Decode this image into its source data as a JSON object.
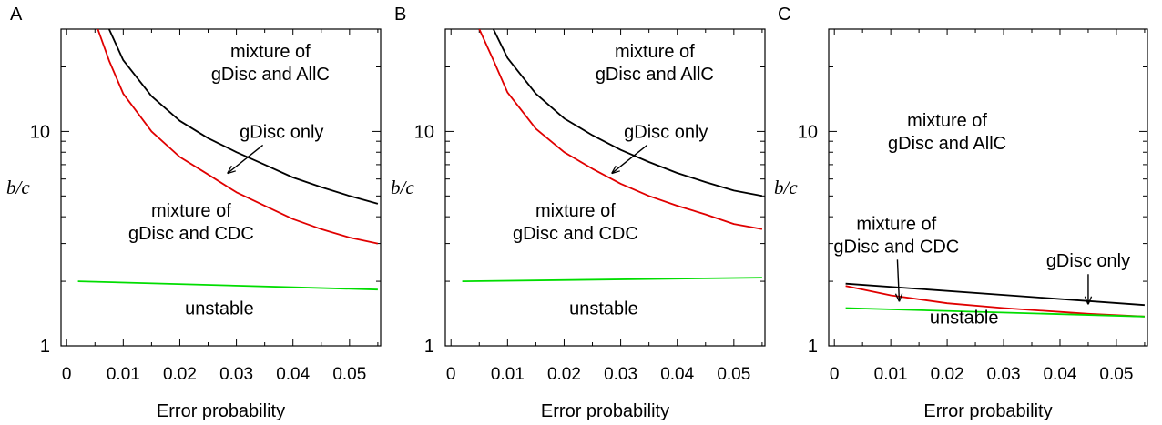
{
  "chart_data": [
    {
      "type": "line",
      "panel_label": "A",
      "xlabel": "Error probability",
      "ylabel": "b/c",
      "yscale": "log",
      "xlim": [
        -0.001,
        0.0555
      ],
      "ylim": [
        1,
        30
      ],
      "x_ticks": [
        0,
        0.01,
        0.02,
        0.03,
        0.04,
        0.05
      ],
      "x_tick_labels": [
        "0",
        "0.01",
        "0.02",
        "0.03",
        "0.04",
        "0.05"
      ],
      "y_ticks": [
        1,
        10
      ],
      "y_tick_labels": [
        "1",
        "10"
      ],
      "series": [
        {
          "color": "#000000",
          "x": [
            0.0075,
            0.01,
            0.015,
            0.02,
            0.025,
            0.03,
            0.035,
            0.04,
            0.045,
            0.05,
            0.055
          ],
          "y": [
            30,
            21.5,
            14.6,
            11.2,
            9.3,
            8.0,
            7.0,
            6.1,
            5.5,
            5.0,
            4.6
          ]
        },
        {
          "color": "#e00000",
          "x": [
            0.0055,
            0.0075,
            0.01,
            0.015,
            0.02,
            0.025,
            0.03,
            0.035,
            0.04,
            0.045,
            0.05,
            0.055
          ],
          "y": [
            30,
            21.4,
            15.0,
            10.0,
            7.6,
            6.3,
            5.2,
            4.5,
            3.9,
            3.5,
            3.2,
            3.0
          ]
        },
        {
          "color": "#00dd00",
          "x": [
            0.002,
            0.055
          ],
          "y": [
            2.0,
            1.83
          ]
        }
      ],
      "annotations": [
        {
          "lines": [
            "mixture of",
            "gDisc and AllC"
          ],
          "x": 0.036,
          "y": 21
        },
        {
          "lines": [
            "gDisc only"
          ],
          "x": 0.038,
          "y": 10,
          "arrow": true,
          "arrow_to": [
            0.0285,
            6.4
          ]
        },
        {
          "lines": [
            "mixture of",
            "gDisc and CDC"
          ],
          "x": 0.022,
          "y": 3.8
        },
        {
          "lines": [
            "unstable"
          ],
          "x": 0.027,
          "y": 1.5
        }
      ]
    },
    {
      "type": "line",
      "panel_label": "B",
      "xlabel": "Error probability",
      "ylabel": "b/c",
      "yscale": "log",
      "xlim": [
        -0.001,
        0.0555
      ],
      "ylim": [
        1,
        30
      ],
      "x_ticks": [
        0,
        0.01,
        0.02,
        0.03,
        0.04,
        0.05
      ],
      "x_tick_labels": [
        "0",
        "0.01",
        "0.02",
        "0.03",
        "0.04",
        "0.05"
      ],
      "y_ticks": [
        1,
        10
      ],
      "y_tick_labels": [
        "1",
        "10"
      ],
      "series": [
        {
          "color": "#000000",
          "x": [
            0.0075,
            0.01,
            0.015,
            0.02,
            0.025,
            0.03,
            0.035,
            0.04,
            0.045,
            0.05,
            0.055
          ],
          "y": [
            30,
            22.0,
            15.0,
            11.5,
            9.6,
            8.2,
            7.2,
            6.4,
            5.8,
            5.3,
            5.0
          ]
        },
        {
          "color": "#e00000",
          "x": [
            0.005,
            0.0075,
            0.01,
            0.015,
            0.02,
            0.025,
            0.03,
            0.035,
            0.04,
            0.045,
            0.05,
            0.055
          ],
          "y": [
            30,
            21.5,
            15.2,
            10.3,
            8.0,
            6.7,
            5.7,
            5.0,
            4.5,
            4.1,
            3.7,
            3.5
          ]
        },
        {
          "color": "#00dd00",
          "x": [
            0.002,
            0.055
          ],
          "y": [
            2.0,
            2.08
          ]
        }
      ],
      "annotations": [
        {
          "lines": [
            "mixture of",
            "gDisc and AllC"
          ],
          "x": 0.036,
          "y": 21
        },
        {
          "lines": [
            "gDisc only"
          ],
          "x": 0.038,
          "y": 10,
          "arrow": true,
          "arrow_to": [
            0.0285,
            6.4
          ]
        },
        {
          "lines": [
            "mixture of",
            "gDisc and CDC"
          ],
          "x": 0.022,
          "y": 3.8
        },
        {
          "lines": [
            "unstable"
          ],
          "x": 0.027,
          "y": 1.5
        }
      ]
    },
    {
      "type": "line",
      "panel_label": "C",
      "xlabel": "Error probability",
      "ylabel": "b/c",
      "yscale": "log",
      "xlim": [
        -0.001,
        0.0555
      ],
      "ylim": [
        1,
        30
      ],
      "x_ticks": [
        0,
        0.01,
        0.02,
        0.03,
        0.04,
        0.05
      ],
      "x_tick_labels": [
        "0",
        "0.01",
        "0.02",
        "0.03",
        "0.04",
        "0.05"
      ],
      "y_ticks": [
        1,
        10
      ],
      "y_tick_labels": [
        "1",
        "10"
      ],
      "series": [
        {
          "color": "#000000",
          "x": [
            0.002,
            0.055
          ],
          "y": [
            1.95,
            1.55
          ]
        },
        {
          "color": "#e00000",
          "x": [
            0.002,
            0.01,
            0.02,
            0.03,
            0.04,
            0.045,
            0.05,
            0.055
          ],
          "y": [
            1.9,
            1.72,
            1.58,
            1.5,
            1.44,
            1.41,
            1.39,
            1.37
          ]
        },
        {
          "color": "#00dd00",
          "x": [
            0.002,
            0.055
          ],
          "y": [
            1.5,
            1.37
          ]
        }
      ],
      "annotations": [
        {
          "lines": [
            "mixture of",
            "gDisc and AllC"
          ],
          "x": 0.02,
          "y": 10
        },
        {
          "lines": [
            "mixture of",
            "gDisc and CDC"
          ],
          "x": 0.011,
          "y": 3.3,
          "arrow": true,
          "arrow_to": [
            0.0115,
            1.62
          ]
        },
        {
          "lines": [
            "gDisc only"
          ],
          "x": 0.045,
          "y": 2.5,
          "arrow": true,
          "arrow_to": [
            0.045,
            1.57
          ]
        },
        {
          "lines": [
            "unstable"
          ],
          "x": 0.023,
          "y": 1.36
        }
      ]
    }
  ]
}
